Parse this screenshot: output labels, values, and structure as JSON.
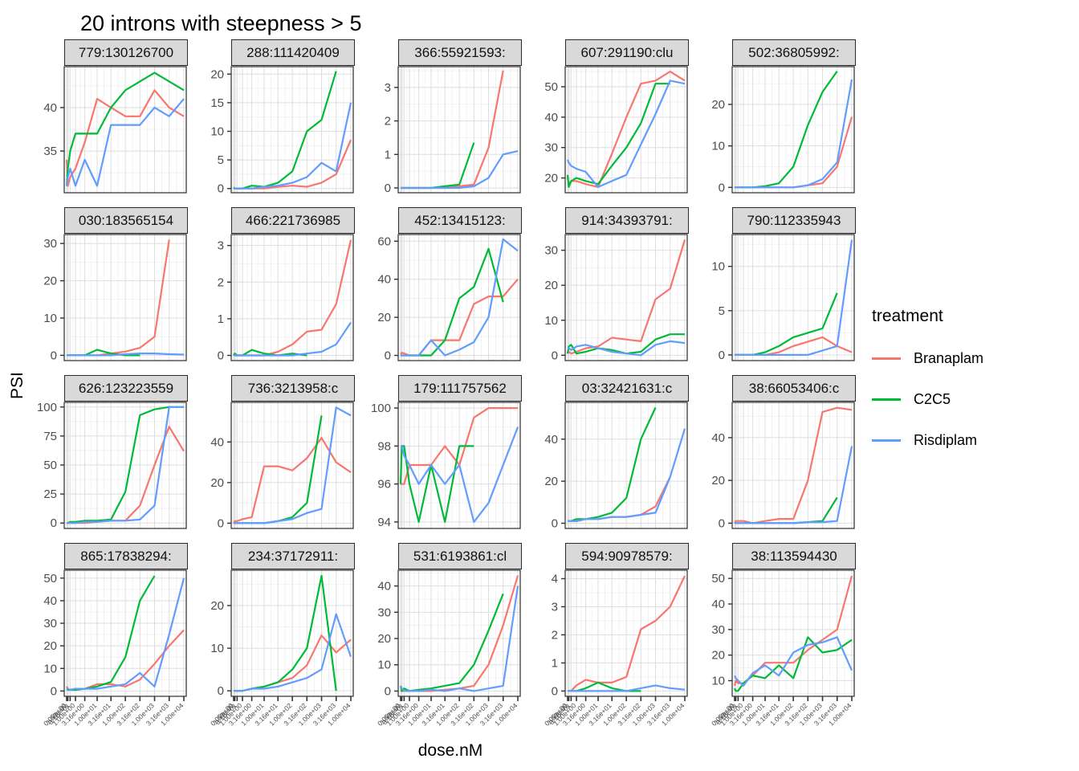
{
  "chart_data": {
    "type": "line",
    "title": "20 introns with steepness > 5",
    "xlabel": "dose.nM",
    "ylabel": "PSI",
    "x_scale": "pseudo-log (dose+1)",
    "grid": "on",
    "doses": [
      0,
      0.1,
      0.316,
      1,
      3.16,
      10,
      31.6,
      100,
      316,
      1000,
      3160,
      10000
    ],
    "x_tick_labels": [
      "0.00e+00",
      "1.00e-01",
      "3.16e-01",
      "1.00e+00",
      "3.16e+00",
      "1.00e+01",
      "3.16e+01",
      "1.00e+02",
      "3.16e+02",
      "1.00e+03",
      "3.16e+03",
      "1.00e+04"
    ],
    "series_colors": {
      "Branaplam": "#F8766D",
      "C2C5": "#00BA38",
      "Risdiplam": "#619CFF"
    },
    "legend": {
      "title": "treatment",
      "position": "right",
      "entries": [
        {
          "label": "Branaplam"
        },
        {
          "label": "C2C5"
        },
        {
          "label": "Risdiplam"
        }
      ]
    },
    "facets": [
      {
        "title": "779:130126700",
        "yticks": [
          35,
          40
        ],
        "ylim": [
          30.3,
          44.7
        ],
        "series": {
          "Branaplam": [
            34,
            31,
            32,
            33,
            36,
            41,
            40,
            39,
            39,
            42,
            40,
            39
          ],
          "C2C5": [
            31,
            33,
            35,
            37,
            37,
            37,
            40,
            42,
            43,
            44,
            43,
            42
          ],
          "Risdiplam": [
            31,
            32,
            33,
            31,
            34,
            31,
            38,
            38,
            38,
            40,
            39,
            41
          ]
        }
      },
      {
        "title": "288:111420409",
        "yticks": [
          0,
          5,
          10,
          15,
          20
        ],
        "ylim": [
          -0.6,
          21.3
        ],
        "series": {
          "Branaplam": [
            0,
            0,
            0,
            0,
            0,
            0,
            0.3,
            0.5,
            0.3,
            1,
            2.5,
            8.5
          ],
          "C2C5": [
            0.2,
            0,
            0,
            0,
            0.5,
            0.3,
            1,
            3,
            10,
            12,
            20.5,
            null
          ],
          "Risdiplam": [
            0,
            0,
            0,
            0,
            0,
            0.3,
            0.5,
            1,
            2,
            4.5,
            3,
            15
          ]
        }
      },
      {
        "title": "366:55921593:",
        "yticks": [
          0,
          1,
          2,
          3
        ],
        "ylim": [
          -0.12,
          3.62
        ],
        "series": {
          "Branaplam": [
            0,
            0,
            0,
            0,
            0,
            0,
            0,
            0.05,
            0.1,
            1.2,
            3.5,
            null
          ],
          "C2C5": [
            0,
            0,
            0,
            0,
            0,
            0,
            0.05,
            0.1,
            1.35,
            null,
            null,
            null
          ],
          "Risdiplam": [
            0,
            0,
            0,
            0,
            0,
            0,
            0,
            0,
            0.05,
            0.3,
            1,
            1.1
          ]
        }
      },
      {
        "title": "607:291190:clu",
        "yticks": [
          20,
          30,
          40,
          50
        ],
        "ylim": [
          15.4,
          56.6
        ],
        "series": {
          "Branaplam": [
            20,
            18,
            19,
            19,
            18,
            17,
            28,
            40,
            51,
            52,
            55,
            52
          ],
          "C2C5": [
            21,
            17,
            19,
            20,
            19,
            18,
            24,
            30,
            38,
            51,
            51,
            null
          ],
          "Risdiplam": [
            26,
            25,
            24,
            23,
            22,
            17,
            19,
            21,
            31,
            41,
            52,
            51
          ]
        }
      },
      {
        "title": "502:36805992:",
        "yticks": [
          0,
          10,
          20
        ],
        "ylim": [
          -1.1,
          29.1
        ],
        "series": {
          "Branaplam": [
            0,
            0,
            0,
            0,
            0,
            0,
            0,
            0,
            0.5,
            1,
            5,
            17
          ],
          "C2C5": [
            0,
            0,
            0,
            0,
            0,
            0.3,
            1,
            5,
            15,
            23,
            28,
            null
          ],
          "Risdiplam": [
            0,
            0,
            0,
            0,
            0,
            0,
            0,
            0,
            0.5,
            2,
            6,
            26
          ]
        }
      },
      {
        "title": "030:183565154",
        "yticks": [
          0,
          10,
          20,
          30
        ],
        "ylim": [
          -1.2,
          32.4
        ],
        "series": {
          "Branaplam": [
            0,
            0,
            0,
            0,
            0,
            0,
            0.5,
            1,
            2,
            5,
            31,
            null
          ],
          "C2C5": [
            0,
            0,
            0,
            0,
            0,
            1.5,
            0.5,
            0,
            0,
            null,
            null,
            null
          ],
          "Risdiplam": [
            0,
            0,
            0,
            0,
            0,
            0,
            0,
            0.3,
            0.5,
            0.5,
            0.3,
            0.2
          ]
        }
      },
      {
        "title": "466:221736985",
        "yticks": [
          0,
          1,
          2,
          3
        ],
        "ylim": [
          -0.12,
          3.3
        ],
        "series": {
          "Branaplam": [
            0,
            0,
            0,
            0,
            0,
            0,
            0.1,
            0.3,
            0.65,
            0.7,
            1.4,
            3.15
          ],
          "C2C5": [
            0,
            0.05,
            0,
            0,
            0.15,
            0.05,
            0,
            0.05,
            0,
            null,
            null,
            null
          ],
          "Risdiplam": [
            0,
            0,
            0,
            0,
            0,
            0,
            0,
            0,
            0.05,
            0.1,
            0.3,
            0.9
          ]
        }
      },
      {
        "title": "452:13415123:",
        "yticks": [
          0,
          20,
          40,
          60
        ],
        "ylim": [
          -2.3,
          63.5
        ],
        "series": {
          "Branaplam": [
            0.5,
            1.5,
            1,
            0,
            0,
            8,
            8,
            8,
            27,
            31,
            31,
            40
          ],
          "C2C5": [
            0,
            0,
            0,
            0,
            0,
            0,
            8,
            30,
            36,
            56,
            28,
            null
          ],
          "Risdiplam": [
            0,
            0,
            0,
            0,
            0,
            8,
            0,
            3,
            7,
            20,
            61,
            55
          ]
        }
      },
      {
        "title": "914:34393791:",
        "yticks": [
          0,
          10,
          20,
          30
        ],
        "ylim": [
          -1.3,
          34.5
        ],
        "series": {
          "Branaplam": [
            0.5,
            1,
            0.5,
            1,
            2,
            2.5,
            5,
            4.5,
            4,
            16,
            19,
            33
          ],
          "C2C5": [
            0.5,
            2.5,
            3,
            0.5,
            1,
            2,
            1.5,
            0.5,
            1,
            4.5,
            6,
            6
          ],
          "Risdiplam": [
            2,
            2,
            1.5,
            2.5,
            3,
            2,
            1,
            0.5,
            0,
            3,
            4,
            3.5
          ]
        }
      },
      {
        "title": "790:112335943",
        "yticks": [
          0,
          5,
          10
        ],
        "ylim": [
          -0.55,
          13.6
        ],
        "series": {
          "Branaplam": [
            0,
            0,
            0,
            0,
            0,
            0,
            0.3,
            1,
            1.5,
            2,
            1,
            0.3
          ],
          "C2C5": [
            0,
            0,
            0,
            0,
            0,
            0.3,
            1,
            2,
            2.5,
            3,
            7,
            null
          ],
          "Risdiplam": [
            0,
            0,
            0,
            0,
            0,
            0,
            0,
            0,
            0,
            0.5,
            1,
            13
          ]
        }
      },
      {
        "title": "626:123223559",
        "yticks": [
          0,
          25,
          50,
          75,
          100
        ],
        "ylim": [
          -4,
          104
        ],
        "series": {
          "Branaplam": [
            0,
            0,
            0,
            0,
            0,
            1,
            2,
            2,
            15,
            50,
            83,
            62
          ],
          "C2C5": [
            0,
            0,
            1,
            1,
            2,
            2,
            3,
            27,
            93,
            98,
            100,
            100
          ],
          "Risdiplam": [
            0,
            0,
            0,
            0,
            1,
            1,
            2,
            2,
            3,
            15,
            100,
            100
          ]
        }
      },
      {
        "title": "736:3213958:c",
        "yticks": [
          0,
          20,
          40
        ],
        "ylim": [
          -2.2,
          59.5
        ],
        "series": {
          "Branaplam": [
            0,
            1,
            1,
            2,
            3,
            28,
            28,
            26,
            32,
            42,
            30,
            25
          ],
          "C2C5": [
            0,
            0,
            0,
            0,
            0,
            0,
            1,
            3,
            10,
            53,
            null,
            null
          ],
          "Risdiplam": [
            0,
            0,
            0,
            0,
            0,
            0,
            1,
            2,
            5,
            7,
            57,
            53
          ]
        }
      },
      {
        "title": "179:111757562",
        "yticks": [
          94,
          96,
          98,
          100
        ],
        "ylim": [
          93.7,
          100.3
        ],
        "series": {
          "Branaplam": [
            96,
            96,
            96,
            97,
            97,
            97,
            98,
            97,
            99.5,
            100,
            100,
            100
          ],
          "C2C5": [
            96,
            98,
            98,
            96,
            94,
            97,
            94,
            98,
            98,
            null,
            null,
            null
          ],
          "Risdiplam": [
            98,
            98,
            97.5,
            97,
            96,
            97,
            96,
            97,
            94,
            95,
            97,
            99
          ]
        }
      },
      {
        "title": "03:32421631:c",
        "yticks": [
          0,
          20,
          40
        ],
        "ylim": [
          -2.1,
          57.5
        ],
        "series": {
          "Branaplam": [
            1,
            1,
            1,
            1,
            2,
            2,
            3,
            3,
            4,
            8,
            22,
            null
          ],
          "C2C5": [
            1,
            1,
            1,
            2,
            2,
            3,
            5,
            12,
            40,
            55,
            null,
            null
          ],
          "Risdiplam": [
            1,
            1,
            1,
            1,
            2,
            2,
            3,
            3,
            4,
            5,
            22,
            45
          ]
        }
      },
      {
        "title": "38:66053406:c",
        "yticks": [
          0,
          20,
          40
        ],
        "ylim": [
          -2.1,
          56.5
        ],
        "series": {
          "Branaplam": [
            0,
            1,
            1,
            1,
            0,
            1,
            2,
            2,
            20,
            52,
            54,
            53
          ],
          "C2C5": [
            0,
            0,
            0,
            0,
            0,
            0,
            0,
            0,
            0.5,
            1,
            12,
            null
          ],
          "Risdiplam": [
            0,
            0,
            0,
            0,
            0,
            0,
            0,
            0,
            0.5,
            0.5,
            1,
            36
          ]
        }
      },
      {
        "title": "865:17838294:",
        "yticks": [
          0,
          10,
          20,
          30,
          40,
          50
        ],
        "ylim": [
          -2,
          53.5
        ],
        "series": {
          "Branaplam": [
            2,
            1,
            0.5,
            1,
            1,
            3,
            3,
            2,
            5,
            12,
            20,
            27
          ],
          "C2C5": [
            1,
            0.5,
            0.5,
            0.5,
            1,
            2,
            4,
            15,
            40,
            51,
            null,
            null
          ],
          "Risdiplam": [
            1,
            1,
            0.5,
            1,
            1,
            1,
            2,
            3,
            8,
            2,
            25,
            50
          ]
        }
      },
      {
        "title": "234:37172911:",
        "yticks": [
          0,
          10,
          20
        ],
        "ylim": [
          -1.1,
          28.3
        ],
        "series": {
          "Branaplam": [
            0,
            0,
            0,
            0,
            0.5,
            1,
            2,
            3,
            6,
            13,
            9,
            12
          ],
          "C2C5": [
            0,
            0,
            0,
            0,
            0.5,
            1,
            2,
            5,
            10,
            27,
            0,
            null
          ],
          "Risdiplam": [
            0,
            0,
            0,
            0,
            0.5,
            0.5,
            1,
            2,
            3,
            5,
            18,
            8
          ]
        }
      },
      {
        "title": "531:6193861:cl",
        "yticks": [
          0,
          10,
          20,
          30,
          40
        ],
        "ylim": [
          -1.7,
          46
        ],
        "series": {
          "Branaplam": [
            0,
            0,
            0,
            0,
            0,
            0,
            0.5,
            1,
            2,
            10,
            25,
            44
          ],
          "C2C5": [
            2,
            0,
            1,
            0,
            0.5,
            1,
            2,
            3,
            10,
            23,
            37,
            null
          ],
          "Risdiplam": [
            2,
            1,
            0,
            0,
            0,
            0.5,
            0,
            1,
            0,
            1,
            2,
            40
          ]
        }
      },
      {
        "title": "594:90978579:",
        "yticks": [
          0,
          1,
          2,
          3,
          4
        ],
        "ylim": [
          -0.16,
          4.3
        ],
        "series": {
          "Branaplam": [
            0,
            0,
            0,
            0.2,
            0.4,
            0.3,
            0.3,
            0.5,
            2.2,
            2.5,
            3,
            4.1
          ],
          "C2C5": [
            0,
            0,
            0,
            0,
            0.1,
            0.3,
            0.1,
            0,
            0,
            null,
            null,
            null
          ],
          "Risdiplam": [
            0,
            0,
            0,
            0,
            0,
            0,
            0,
            0,
            0.1,
            0.2,
            0.1,
            0.05
          ]
        }
      },
      {
        "title": "38:113594430",
        "yticks": [
          10,
          20,
          30,
          40,
          50
        ],
        "ylim": [
          4.2,
          53.2
        ],
        "series": {
          "Branaplam": [
            8,
            10,
            9,
            9,
            12,
            17,
            17,
            17,
            22,
            26,
            30,
            51
          ],
          "C2C5": [
            7,
            6,
            6,
            9,
            12,
            11,
            16,
            11,
            27,
            21,
            22,
            26
          ],
          "Risdiplam": [
            12,
            11,
            10,
            8,
            13,
            16,
            12,
            21,
            24,
            25,
            27,
            14
          ]
        }
      }
    ]
  }
}
